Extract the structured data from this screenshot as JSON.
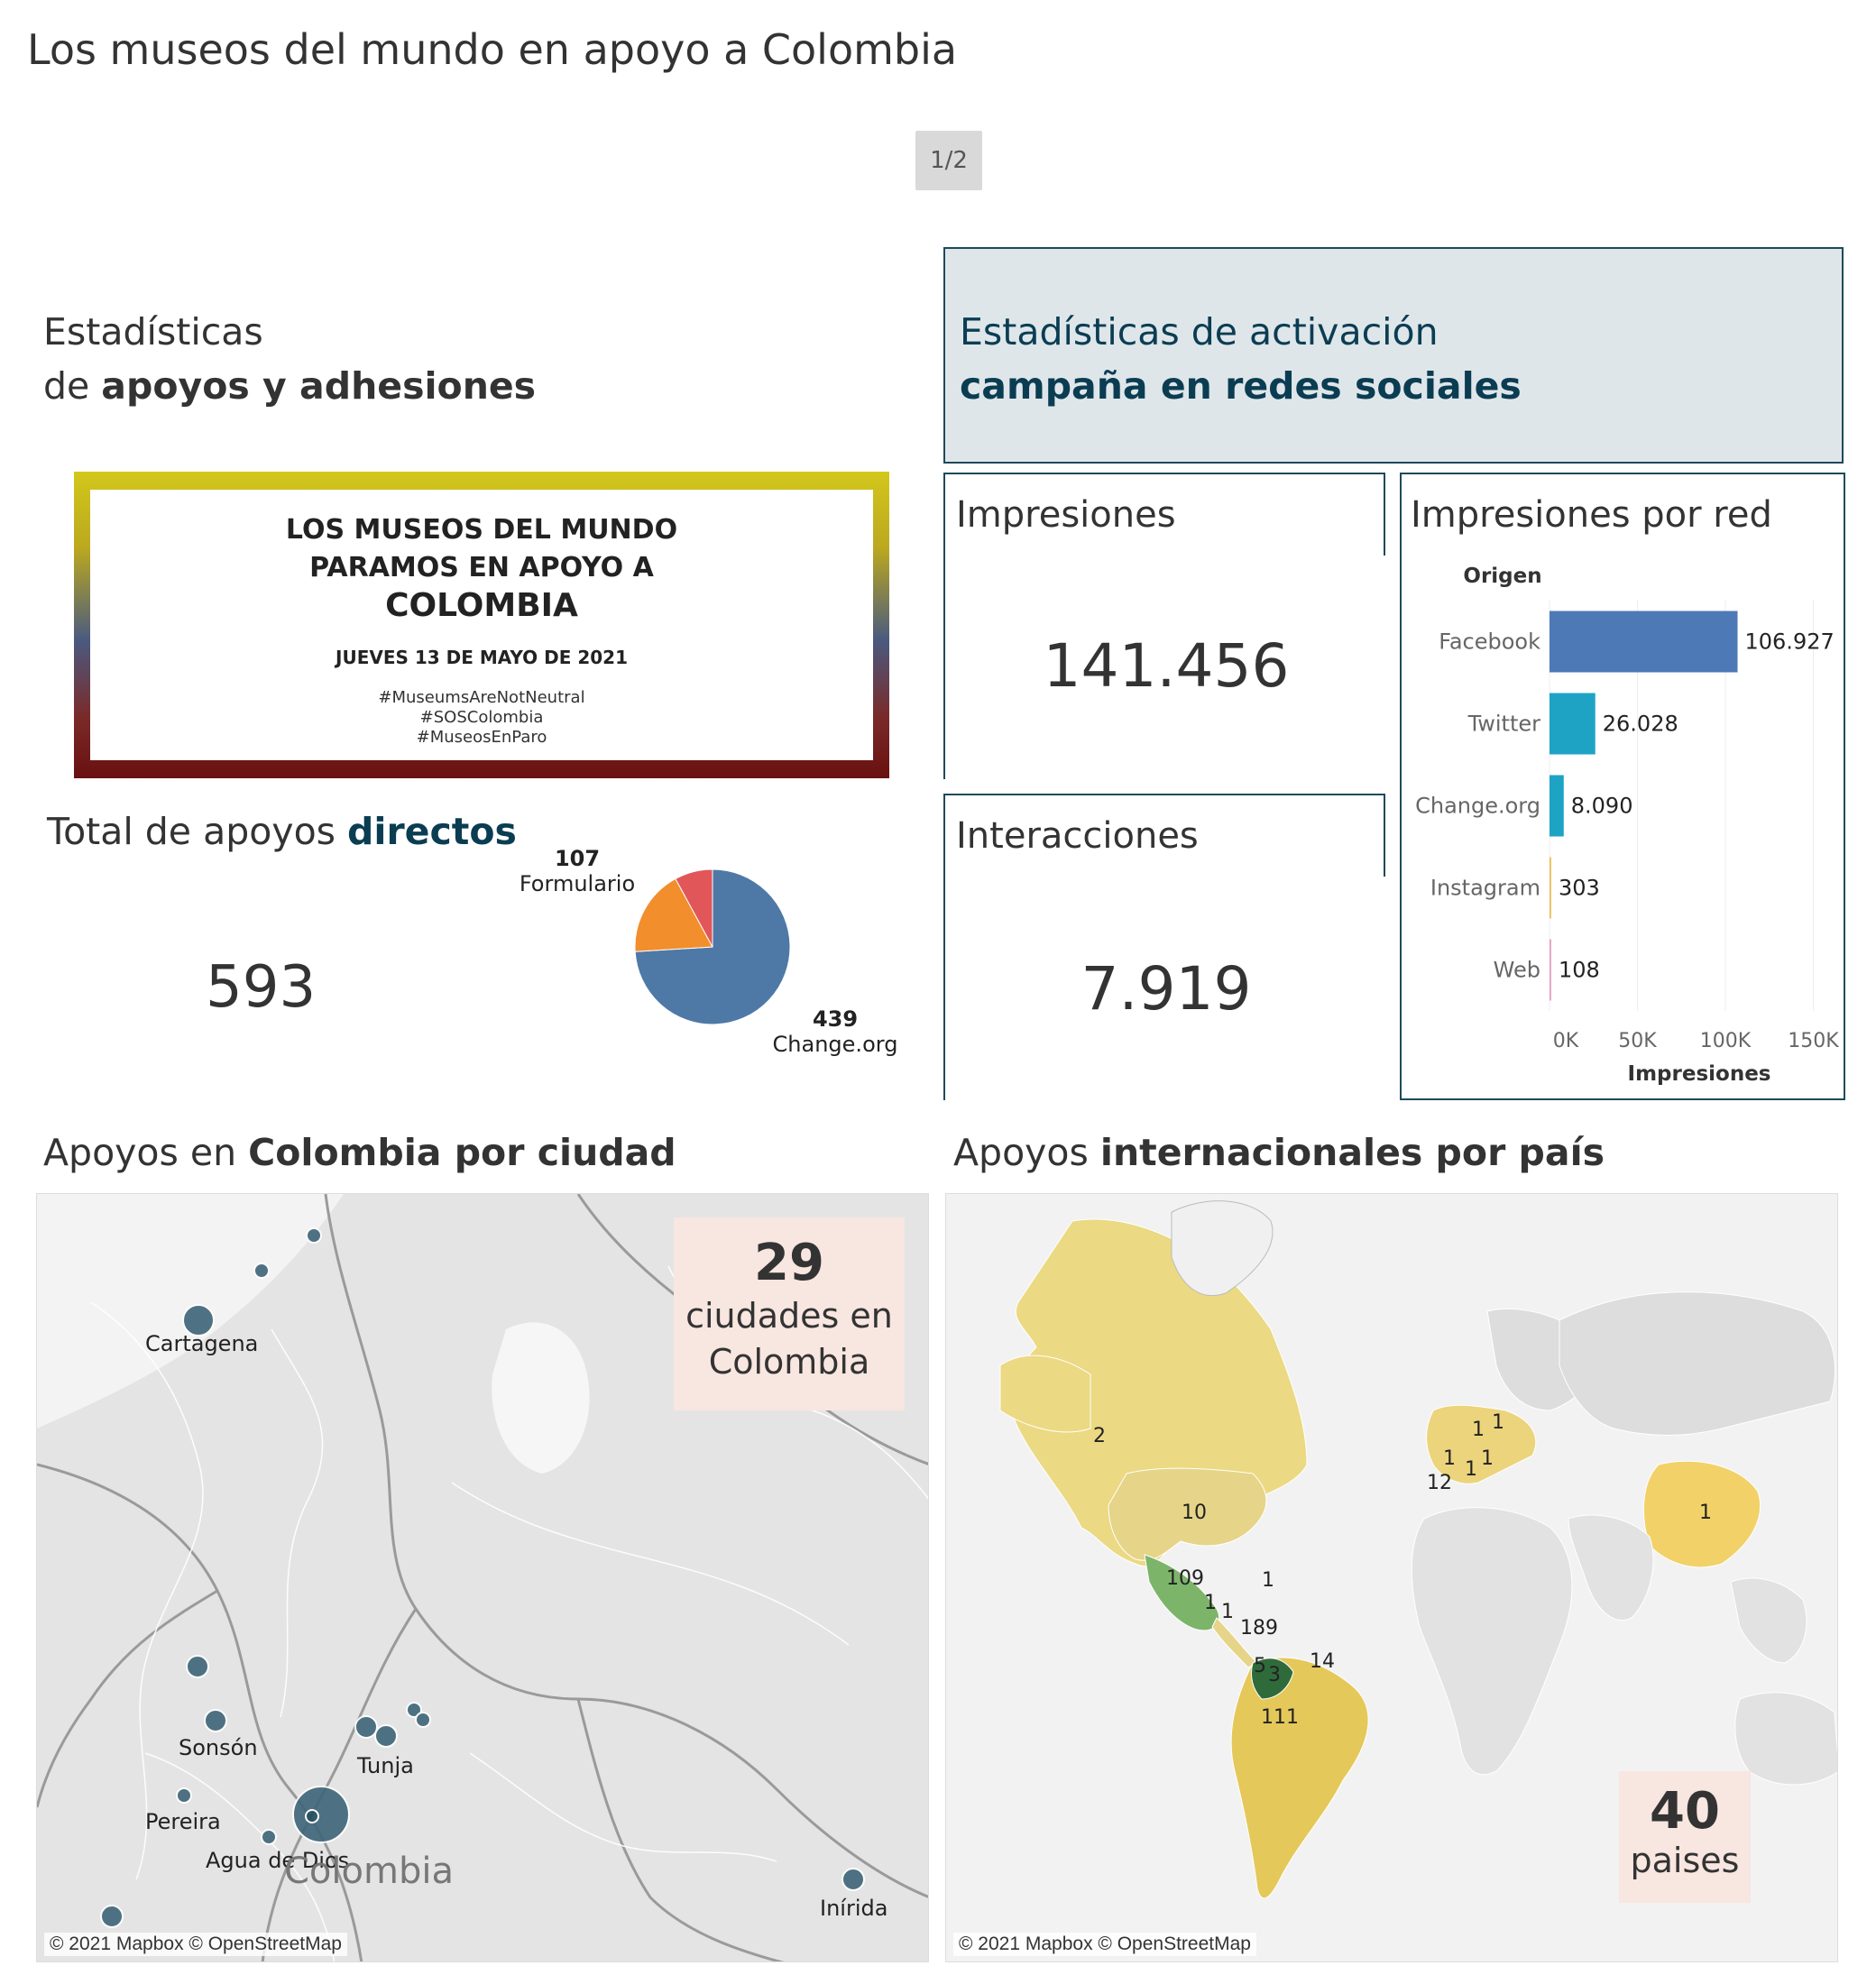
{
  "page": {
    "title": "Los museos del mundo en apoyo a Colombia",
    "pager": "1/2"
  },
  "stats": {
    "line1": "Estadísticas",
    "line2_pre": "de ",
    "line2_bold": "apoyos y adhesiones"
  },
  "social": {
    "line1": "Estadísticas de activación",
    "line2": "campaña en redes sociales"
  },
  "poster": {
    "line1": "LOS MUSEOS DEL MUNDO",
    "line2": "PARAMOS EN APOYO A",
    "line3": "COLOMBIA",
    "date": "JUEVES 13 DE MAYO DE 2021",
    "tags": [
      "#MuseumsAreNotNeutral",
      "#SOSColombia",
      "#MuseosEnParo"
    ]
  },
  "impresiones": {
    "title": "Impresiones",
    "value": "141.456"
  },
  "interacciones": {
    "title": "Interacciones",
    "value": "7.919"
  },
  "directos": {
    "title_pre": "Total de apoyos ",
    "title_bold": "directos",
    "total": "593"
  },
  "pie_labels": {
    "formulario_value": "107",
    "formulario_name": "Formulario",
    "change_value": "439",
    "change_name": "Change.org"
  },
  "colors": {
    "facebook": "#4e79b7",
    "twitter": "#1fa3c4",
    "change": "#1fa3c4",
    "instagram": "#f0c36a",
    "web": "#e7a6c8",
    "pie_blue": "#4e79a7",
    "pie_orange": "#f28e2b",
    "pie_red": "#e15759"
  },
  "chart_data": [
    {
      "type": "bar",
      "title": "Impresiones por red",
      "legend_title": "Origen",
      "categories": [
        "Facebook",
        "Twitter",
        "Change.org",
        "Instagram",
        "Web"
      ],
      "values": [
        106927,
        26028,
        8090,
        303,
        108
      ],
      "value_labels": [
        "106.927",
        "26.028",
        "8.090",
        "303",
        "108"
      ],
      "xlabel": "Impresiones",
      "xlim": [
        0,
        160000
      ],
      "x_ticks": [
        0,
        50000,
        100000,
        150000
      ],
      "x_tick_labels": [
        "0K",
        "50K",
        "100K",
        "150K"
      ],
      "orientation": "horizontal"
    },
    {
      "type": "pie",
      "slices": [
        {
          "name": "Change.org",
          "value": 439
        },
        {
          "name": "Formulario",
          "value": 107
        },
        {
          "name": "",
          "value": 47
        }
      ]
    }
  ],
  "colombia_map": {
    "title_pre": "Apoyos en ",
    "title_bold": "Colombia por ciudad",
    "count": "29",
    "count_line1": "ciudades en",
    "count_line2": "Colombia",
    "cities": [
      "Cartagena",
      "Sonsón",
      "Tunja",
      "Pereira",
      "Agua de Dios",
      "Inírida"
    ],
    "country_label": "Colombia",
    "attribution": "© 2021 Mapbox © OpenStreetMap"
  },
  "world_map": {
    "title_pre": "Apoyos ",
    "title_bold": "internacionales por país",
    "count": "40",
    "count_label": "paises",
    "labels": [
      "2",
      "10",
      "109",
      "1",
      "1",
      "1",
      "189",
      "5",
      "3",
      "14",
      "111",
      "1",
      "1",
      "1",
      "1",
      "12",
      "1",
      "1"
    ],
    "attribution": "© 2021 Mapbox © OpenStreetMap"
  }
}
